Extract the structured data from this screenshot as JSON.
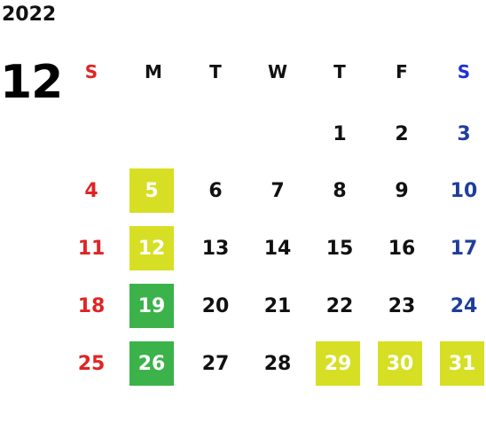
{
  "year": "2022",
  "month": "12",
  "weekdays": [
    "S",
    "M",
    "T",
    "W",
    "T",
    "F",
    "S"
  ],
  "colors": {
    "sunday": "#e02424",
    "saturday": "#1f3e9b",
    "saturday_header": "#1f2fd6",
    "highlight_yellow": "#d6df23",
    "highlight_green": "#3bb34a"
  },
  "weeks": [
    [
      "",
      "",
      "",
      "",
      "1",
      "2",
      "3"
    ],
    [
      "4",
      "5",
      "6",
      "7",
      "8",
      "9",
      "10"
    ],
    [
      "11",
      "12",
      "13",
      "14",
      "15",
      "16",
      "17"
    ],
    [
      "18",
      "19",
      "20",
      "21",
      "22",
      "23",
      "24"
    ],
    [
      "25",
      "26",
      "27",
      "28",
      "29",
      "30",
      "31"
    ]
  ],
  "highlighted_days": {
    "yellow": [
      "5",
      "12",
      "29",
      "30",
      "31"
    ],
    "green": [
      "19",
      "26"
    ]
  }
}
